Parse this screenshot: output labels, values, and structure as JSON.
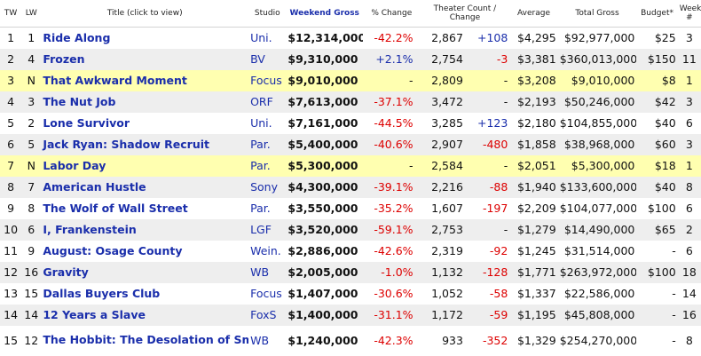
{
  "header": {
    "tw": "TW",
    "lw": "LW",
    "title": "Title (click to view)",
    "studio": "Studio",
    "weekend_gross": "Weekend Gross",
    "pct_change": "% Change",
    "theater_count": "Theater Count /",
    "theater_change": "Change",
    "average": "Average",
    "total_gross": "Total Gross",
    "budget": "Budget*",
    "week": "Week #"
  },
  "rows": [
    {
      "tw": "1",
      "lw": "1",
      "title": "Ride Along",
      "studio": "Uni.",
      "gross": "$12,314,000",
      "pct": "-42.2%",
      "theaters": "2,867",
      "change": "+108",
      "avg": "$4,295",
      "total": "$92,977,000",
      "budget": "$25",
      "week": "3",
      "new": false
    },
    {
      "tw": "2",
      "lw": "4",
      "title": "Frozen",
      "studio": "BV",
      "gross": "$9,310,000",
      "pct": "+2.1%",
      "theaters": "2,754",
      "change": "-3",
      "avg": "$3,381",
      "total": "$360,013,000",
      "budget": "$150",
      "week": "11",
      "new": false
    },
    {
      "tw": "3",
      "lw": "N",
      "title": "That Awkward Moment",
      "studio": "Focus",
      "gross": "$9,010,000",
      "pct": "-",
      "theaters": "2,809",
      "change": "-",
      "avg": "$3,208",
      "total": "$9,010,000",
      "budget": "$8",
      "week": "1",
      "new": true
    },
    {
      "tw": "4",
      "lw": "3",
      "title": "The Nut Job",
      "studio": "ORF",
      "gross": "$7,613,000",
      "pct": "-37.1%",
      "theaters": "3,472",
      "change": "-",
      "avg": "$2,193",
      "total": "$50,246,000",
      "budget": "$42",
      "week": "3",
      "new": false
    },
    {
      "tw": "5",
      "lw": "2",
      "title": "Lone Survivor",
      "studio": "Uni.",
      "gross": "$7,161,000",
      "pct": "-44.5%",
      "theaters": "3,285",
      "change": "+123",
      "avg": "$2,180",
      "total": "$104,855,000",
      "budget": "$40",
      "week": "6",
      "new": false
    },
    {
      "tw": "6",
      "lw": "5",
      "title": "Jack Ryan: Shadow Recruit",
      "studio": "Par.",
      "gross": "$5,400,000",
      "pct": "-40.6%",
      "theaters": "2,907",
      "change": "-480",
      "avg": "$1,858",
      "total": "$38,968,000",
      "budget": "$60",
      "week": "3",
      "new": false
    },
    {
      "tw": "7",
      "lw": "N",
      "title": "Labor Day",
      "studio": "Par.",
      "gross": "$5,300,000",
      "pct": "-",
      "theaters": "2,584",
      "change": "-",
      "avg": "$2,051",
      "total": "$5,300,000",
      "budget": "$18",
      "week": "1",
      "new": true
    },
    {
      "tw": "8",
      "lw": "7",
      "title": "American Hustle",
      "studio": "Sony",
      "gross": "$4,300,000",
      "pct": "-39.1%",
      "theaters": "2,216",
      "change": "-88",
      "avg": "$1,940",
      "total": "$133,600,000",
      "budget": "$40",
      "week": "8",
      "new": false
    },
    {
      "tw": "9",
      "lw": "8",
      "title": "The Wolf of Wall Street",
      "studio": "Par.",
      "gross": "$3,550,000",
      "pct": "-35.2%",
      "theaters": "1,607",
      "change": "-197",
      "avg": "$2,209",
      "total": "$104,077,000",
      "budget": "$100",
      "week": "6",
      "new": false
    },
    {
      "tw": "10",
      "lw": "6",
      "title": "I, Frankenstein",
      "studio": "LGF",
      "gross": "$3,520,000",
      "pct": "-59.1%",
      "theaters": "2,753",
      "change": "-",
      "avg": "$1,279",
      "total": "$14,490,000",
      "budget": "$65",
      "week": "2",
      "new": false
    },
    {
      "tw": "11",
      "lw": "9",
      "title": "August: Osage County",
      "studio": "Wein.",
      "gross": "$2,886,000",
      "pct": "-42.6%",
      "theaters": "2,319",
      "change": "-92",
      "avg": "$1,245",
      "total": "$31,514,000",
      "budget": "-",
      "week": "6",
      "new": false
    },
    {
      "tw": "12",
      "lw": "16",
      "title": "Gravity",
      "studio": "WB",
      "gross": "$2,005,000",
      "pct": "-1.0%",
      "theaters": "1,132",
      "change": "-128",
      "avg": "$1,771",
      "total": "$263,972,000",
      "budget": "$100",
      "week": "18",
      "new": false
    },
    {
      "tw": "13",
      "lw": "15",
      "title": "Dallas Buyers Club",
      "studio": "Focus",
      "gross": "$1,407,000",
      "pct": "-30.6%",
      "theaters": "1,052",
      "change": "-58",
      "avg": "$1,337",
      "total": "$22,586,000",
      "budget": "-",
      "week": "14",
      "new": false
    },
    {
      "tw": "14",
      "lw": "14",
      "title": "12 Years a Slave",
      "studio": "FoxS",
      "gross": "$1,400,000",
      "pct": "-31.1%",
      "theaters": "1,172",
      "change": "-59",
      "avg": "$1,195",
      "total": "$45,808,000",
      "budget": "-",
      "week": "16",
      "new": false
    },
    {
      "tw": "15",
      "lw": "12",
      "title": "The Hobbit: The Desolation of Smaug",
      "studio": "WB",
      "gross": "$1,240,000",
      "pct": "-42.3%",
      "theaters": "933",
      "change": "-352",
      "avg": "$1,329",
      "total": "$254,270,000",
      "budget": "-",
      "week": "8",
      "new": false
    }
  ]
}
